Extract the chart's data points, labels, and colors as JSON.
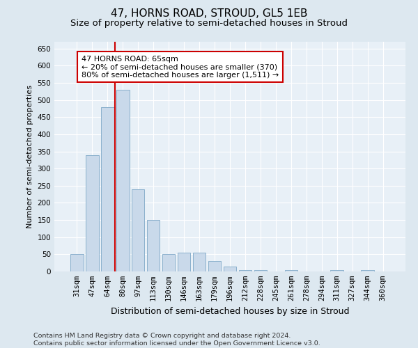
{
  "title": "47, HORNS ROAD, STROUD, GL5 1EB",
  "subtitle": "Size of property relative to semi-detached houses in Stroud",
  "xlabel": "Distribution of semi-detached houses by size in Stroud",
  "ylabel": "Number of semi-detached properties",
  "categories": [
    "31sqm",
    "47sqm",
    "64sqm",
    "80sqm",
    "97sqm",
    "113sqm",
    "130sqm",
    "146sqm",
    "163sqm",
    "179sqm",
    "196sqm",
    "212sqm",
    "228sqm",
    "245sqm",
    "261sqm",
    "278sqm",
    "294sqm",
    "311sqm",
    "327sqm",
    "344sqm",
    "360sqm"
  ],
  "values": [
    50,
    340,
    480,
    530,
    240,
    150,
    50,
    55,
    55,
    30,
    15,
    5,
    5,
    0,
    5,
    0,
    0,
    5,
    0,
    5,
    0
  ],
  "bar_color": "#c9d9ea",
  "bar_edgecolor": "#8ab0cc",
  "vline_color": "#cc0000",
  "vline_x": 2.5,
  "annotation_text": "47 HORNS ROAD: 65sqm\n← 20% of semi-detached houses are smaller (370)\n80% of semi-detached houses are larger (1,511) →",
  "annotation_box_facecolor": "white",
  "annotation_box_edgecolor": "#cc0000",
  "ylim": [
    0,
    670
  ],
  "yticks": [
    0,
    50,
    100,
    150,
    200,
    250,
    300,
    350,
    400,
    450,
    500,
    550,
    600,
    650
  ],
  "footer": "Contains HM Land Registry data © Crown copyright and database right 2024.\nContains public sector information licensed under the Open Government Licence v3.0.",
  "background_color": "#dde8f0",
  "plot_background_color": "#e8f0f7",
  "title_fontsize": 11,
  "subtitle_fontsize": 9.5,
  "xlabel_fontsize": 9,
  "ylabel_fontsize": 8,
  "tick_fontsize": 7.5,
  "annotation_fontsize": 8,
  "footer_fontsize": 6.8
}
